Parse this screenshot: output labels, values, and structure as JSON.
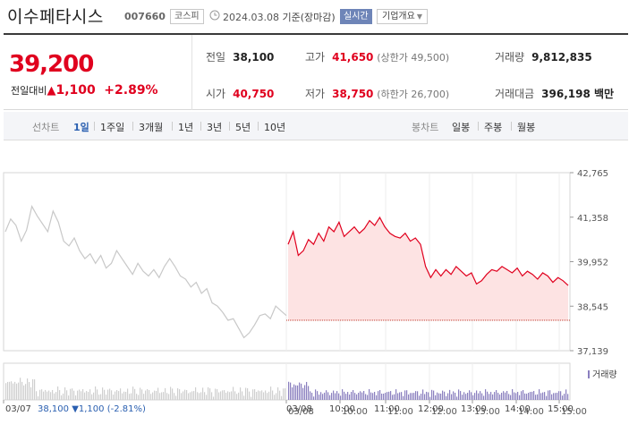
{
  "header": {
    "stock_name": "이수페타시스",
    "stock_code": "007660",
    "market_badge": "코스피",
    "date": "2024.03.08",
    "date_suffix": "기준(장마감)",
    "realtime_badge": "실시간",
    "corp_overview_label": "기업개요"
  },
  "quote": {
    "price": "39,200",
    "change_label": "전일대비",
    "change_amount": "1,100",
    "change_percent": "+2.89%",
    "prev_close_label": "전일",
    "prev_close": "38,100",
    "open_label": "시가",
    "open": "40,750",
    "high_label": "고가",
    "high": "41,650",
    "upper_limit": "(상한가 49,500)",
    "low_label": "저가",
    "low": "38,750",
    "lower_limit": "(하한가 26,700)",
    "volume_label": "거래량",
    "volume": "9,812,835",
    "trade_value_label": "거래대금",
    "trade_value": "396,198 백만"
  },
  "tabs": {
    "line_chart_label": "선차트",
    "periods": [
      "1일",
      "1주일",
      "3개월",
      "1년",
      "3년",
      "5년",
      "10년"
    ],
    "active_period": "1일",
    "candle_label": "봉차트",
    "candle_periods": [
      "일봉",
      "주봉",
      "월봉"
    ]
  },
  "chart_data": {
    "type": "line",
    "ylim": [
      37139,
      42765
    ],
    "y_ticks": [
      "42,765",
      "41,358",
      "39,952",
      "38,545",
      "37,139"
    ],
    "x_ticks": [
      "03/07",
      "03/08",
      "10:00",
      "11:00",
      "12:00",
      "13:00",
      "14:00",
      "15:00"
    ],
    "baseline": 38100,
    "series": [
      {
        "values": [
          40900,
          41300,
          41100,
          40600,
          40950,
          41700,
          41400,
          41150,
          40900,
          41550,
          41200,
          40600,
          40450,
          40700,
          40300,
          40050,
          40200,
          39900,
          40150,
          39750,
          39900,
          40300,
          40050,
          39800,
          39550,
          39900,
          39650,
          39500,
          39700,
          39450,
          39800,
          40050,
          39800,
          39500,
          39400,
          39150,
          39300,
          38950,
          39100,
          38650,
          38550,
          38350,
          38100,
          38150,
          37850,
          37550,
          37700,
          37950,
          38250,
          38300,
          38150,
          38550,
          38400,
          38250
        ]
      },
      {
        "values": [
          40500,
          40900,
          40150,
          40300,
          40650,
          40500,
          40850,
          40600,
          41050,
          40900,
          41200,
          40750,
          40900,
          41050,
          40850,
          41000,
          41250,
          41100,
          41350,
          41050,
          40850,
          40750,
          40700,
          40850,
          40600,
          40700,
          40500,
          39800,
          39450,
          39700,
          39500,
          39700,
          39550,
          39800,
          39650,
          39500,
          39600,
          39250,
          39350,
          39550,
          39700,
          39650,
          39800,
          39700,
          39600,
          39750,
          39500,
          39650,
          39550,
          39400,
          39600,
          39500,
          39300,
          39450,
          39350,
          39200
        ]
      }
    ],
    "volume_legend": "거래량"
  },
  "footer": {
    "date": "03/07",
    "prev_price": "38,100",
    "prev_change": "▼1,100",
    "prev_pct": "(-2.81%)"
  },
  "colors": {
    "up": "#e0001e",
    "down": "#2a5fb0",
    "today_line": "#e0001e",
    "today_fill": "#fde3e3",
    "prev_line": "#c8c8c8",
    "volume_today": "#8a7fbf",
    "volume_prev": "#cfcfcf"
  }
}
